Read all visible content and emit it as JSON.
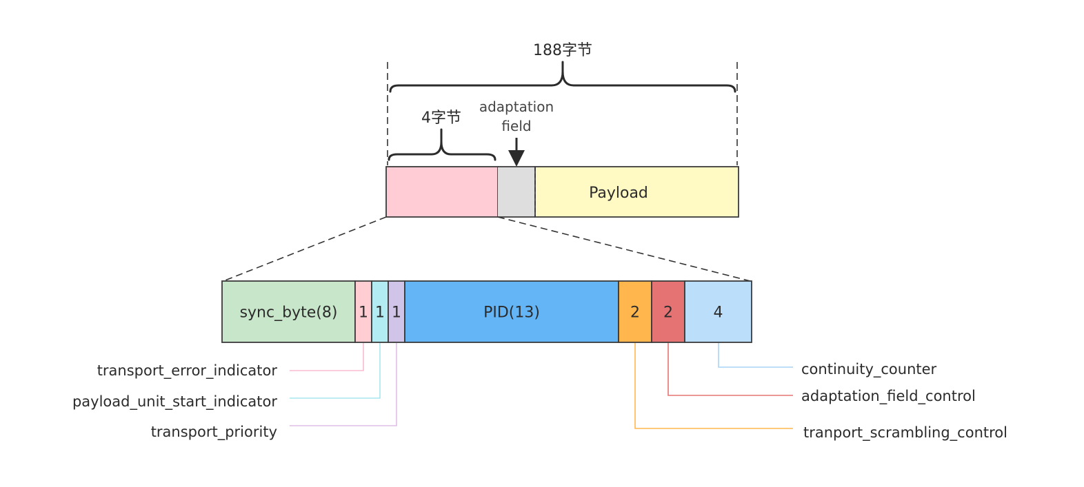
{
  "top": {
    "total_label": "188字节",
    "header_label": "4字节",
    "adaptation_label_line1": "adaptation",
    "adaptation_label_line2": "field",
    "payload_label": "Payload",
    "colors": {
      "header": "#ffccd5",
      "adaptation": "#dedede",
      "payload": "#fff9c4"
    }
  },
  "header_fields": [
    {
      "id": "sync-byte",
      "label": "sync_byte(8)",
      "color": "#c8e6c9"
    },
    {
      "id": "tei",
      "label": "1",
      "color": "#ffcdd2"
    },
    {
      "id": "pusi",
      "label": "1",
      "color": "#b2ebf2"
    },
    {
      "id": "tp",
      "label": "1",
      "color": "#d1c4e9"
    },
    {
      "id": "pid",
      "label": "PID(13)",
      "color": "#64b5f6"
    },
    {
      "id": "tsc",
      "label": "2",
      "color": "#ffb74d"
    },
    {
      "id": "afc",
      "label": "2",
      "color": "#e57373"
    },
    {
      "id": "cc",
      "label": "4",
      "color": "#bbdefb"
    }
  ],
  "annotations": [
    {
      "id": "transport-error-indicator",
      "label": "transport_error_indicator",
      "color": "#f8bbd0"
    },
    {
      "id": "payload-unit-start-indicator",
      "label": "payload_unit_start_indicator",
      "color": "#a7e6ef"
    },
    {
      "id": "transport-priority",
      "label": "transport_priority",
      "color": "#e1bee7"
    },
    {
      "id": "continuity-counter",
      "label": "continuity_counter",
      "color": "#a9d4f5"
    },
    {
      "id": "adaptation-field-control",
      "label": "adaptation_field_control",
      "color": "#e57373"
    },
    {
      "id": "tranport-scrambling-control",
      "label": "tranport_scrambling_control",
      "color": "#ffb74d"
    }
  ]
}
